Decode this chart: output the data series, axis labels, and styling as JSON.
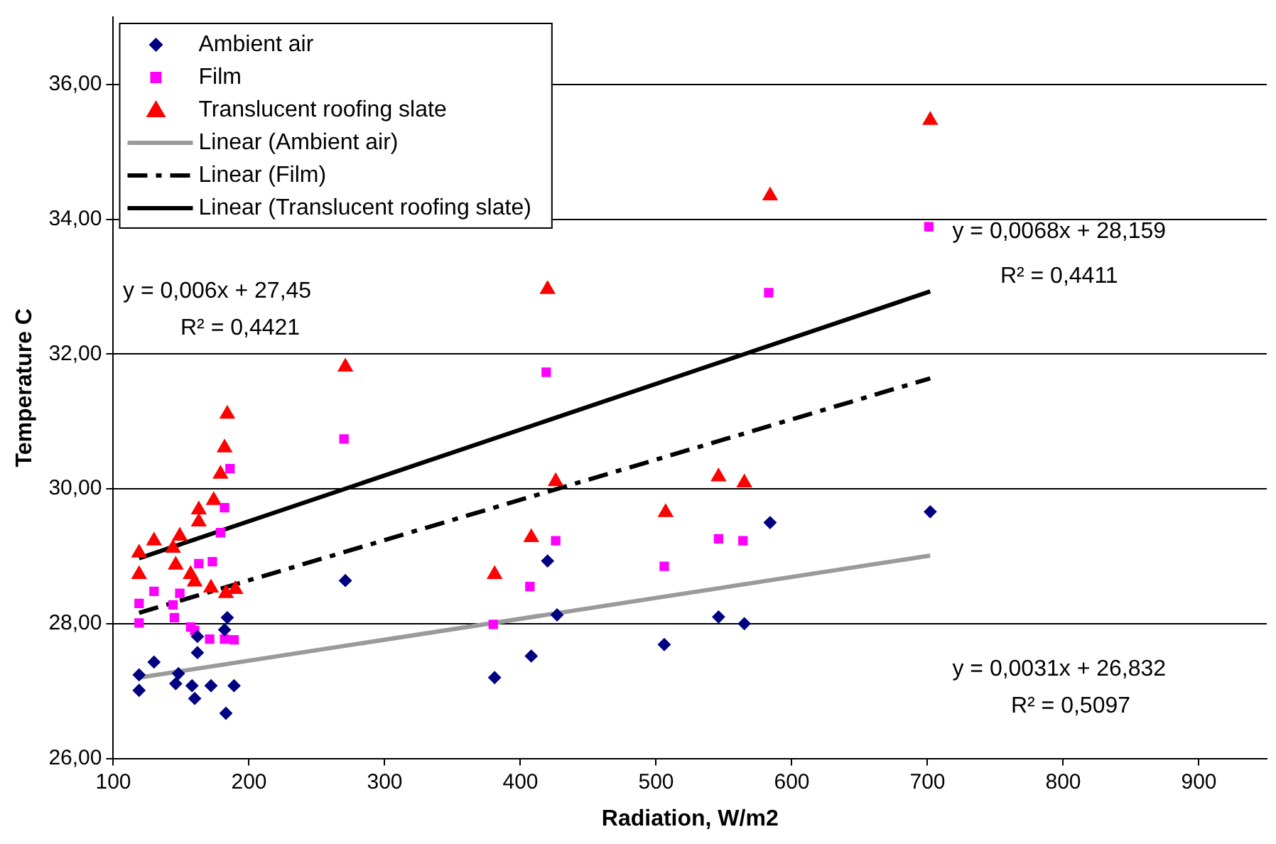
{
  "chart_data": {
    "type": "scatter",
    "xlabel": "Radiation, W/m2",
    "ylabel": "Temperature C",
    "xlim": [
      100,
      950
    ],
    "xticks": [
      100,
      200,
      300,
      400,
      500,
      600,
      700,
      800,
      900
    ],
    "ylim": [
      26,
      37
    ],
    "yticks": [
      {
        "value": 26,
        "label": "26,00"
      },
      {
        "value": 28,
        "label": "28,00"
      },
      {
        "value": 30,
        "label": "30,00"
      },
      {
        "value": 32,
        "label": "32,00"
      },
      {
        "value": 34,
        "label": "34,00"
      },
      {
        "value": 36,
        "label": "36,00"
      }
    ],
    "grid": "y",
    "legend": "top left",
    "series": [
      {
        "name": "Ambient air",
        "color": "#000080",
        "marker": "diamond",
        "x": [
          119,
          119,
          130,
          146,
          148,
          158,
          160,
          162,
          162,
          172,
          183,
          189,
          184,
          182,
          271,
          381,
          408,
          420,
          427,
          506,
          546,
          565,
          584,
          702
        ],
        "values": [
          27.24,
          27.01,
          27.43,
          27.11,
          27.26,
          27.08,
          26.89,
          27.57,
          27.81,
          27.08,
          26.67,
          27.08,
          28.09,
          27.91,
          28.64,
          27.2,
          27.52,
          28.93,
          28.13,
          27.69,
          28.1,
          28.0,
          29.5,
          29.66
        ]
      },
      {
        "name": "Film",
        "color": "#ff00ff",
        "marker": "square",
        "x": [
          119,
          119,
          130,
          144,
          145,
          149,
          157,
          160,
          163,
          173,
          171,
          182,
          189,
          179,
          182,
          186,
          270,
          419,
          583,
          380,
          407,
          426,
          506,
          546,
          564,
          701
        ],
        "values": [
          28.3,
          28.01,
          28.48,
          28.28,
          28.09,
          28.45,
          27.95,
          27.9,
          28.89,
          28.92,
          27.77,
          27.77,
          27.76,
          29.35,
          29.72,
          30.3,
          30.74,
          31.73,
          32.91,
          27.99,
          28.55,
          29.23,
          28.85,
          29.26,
          29.23,
          33.89
        ]
      },
      {
        "name": "Translucent roofing slate",
        "color": "#ff0000",
        "marker": "triangle",
        "x": [
          119,
          119,
          130,
          149,
          144,
          146,
          157,
          160,
          163,
          163,
          174,
          172,
          183,
          190,
          179,
          182,
          184,
          271,
          420,
          381,
          408,
          426,
          507,
          546,
          565,
          584,
          702
        ],
        "values": [
          29.05,
          28.73,
          29.23,
          29.3,
          29.12,
          28.87,
          28.73,
          28.62,
          29.51,
          29.69,
          29.83,
          28.53,
          28.45,
          28.51,
          30.22,
          30.61,
          31.11,
          31.81,
          32.96,
          28.73,
          29.28,
          30.11,
          29.65,
          30.18,
          30.09,
          34.35,
          35.47
        ]
      },
      {
        "name": "Linear (Ambient air)",
        "type": "line",
        "color": "#9a9a9a",
        "marker": "none",
        "line_style": "solid",
        "x": [
          119,
          702
        ],
        "values": [
          27.2,
          29.01
        ]
      },
      {
        "name": "Linear (Film)",
        "type": "line",
        "color": "#000000",
        "marker": "none",
        "line_style": "dashed",
        "x": [
          119,
          702
        ],
        "values": [
          28.16,
          31.64
        ]
      },
      {
        "name": "Linear (Translucent roofing slate)",
        "type": "line",
        "color": "#000000",
        "marker": "none",
        "line_style": "solid",
        "x": [
          119,
          702
        ],
        "values": [
          28.97,
          32.93
        ]
      }
    ],
    "annotations": [
      "y = 0,006x + 27,45",
      "R² = 0,4421",
      "y = 0,0068x + 28,159",
      "R² = 0,4411",
      "y = 0,0031x + 26,832",
      "R² = 0,5097"
    ]
  }
}
